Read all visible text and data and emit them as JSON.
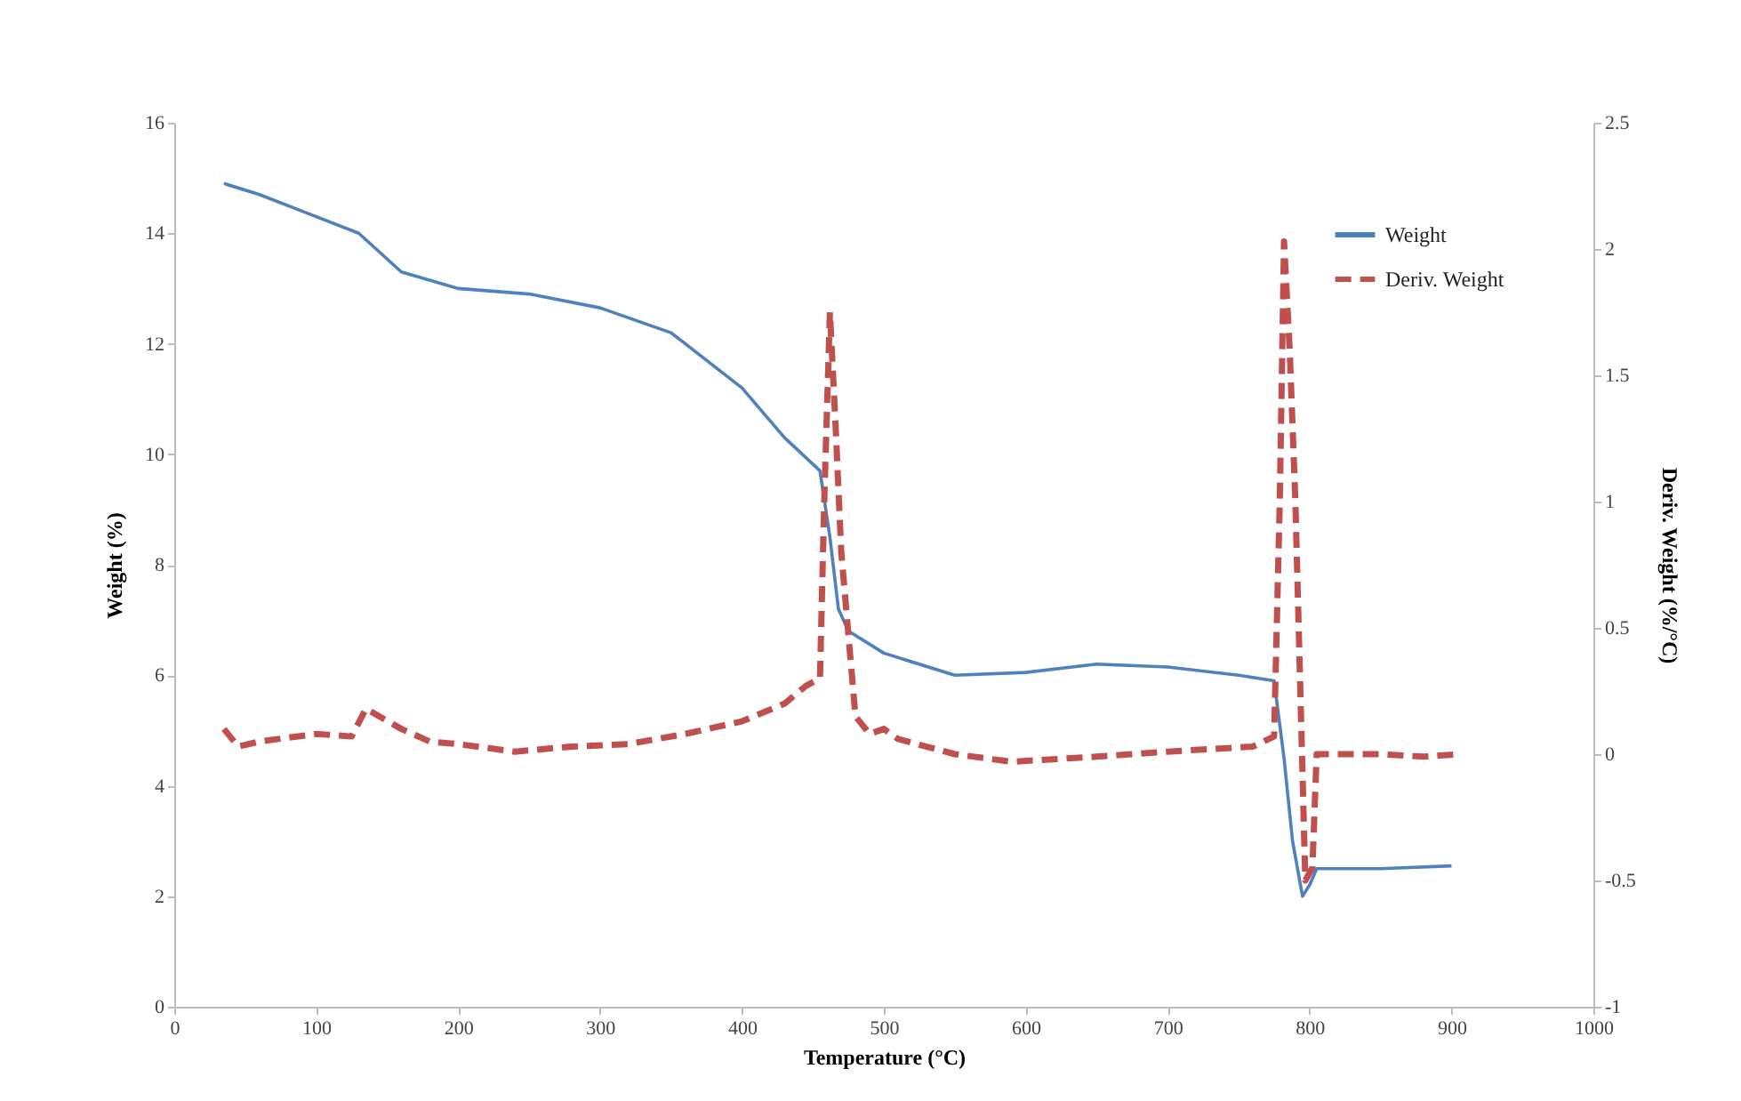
{
  "chart_data": {
    "type": "line",
    "xlabel": "Temperature (°C)",
    "ylabel": "Weight (%)",
    "y2label": "Deriv. Weight (%/°C)",
    "xlim": [
      0,
      1000
    ],
    "xticks": [
      0,
      100,
      200,
      300,
      400,
      500,
      600,
      700,
      800,
      900,
      1000
    ],
    "ylim": [
      0,
      16
    ],
    "yticks": [
      0,
      2,
      4,
      6,
      8,
      10,
      12,
      14,
      16
    ],
    "y2lim": [
      -1,
      2.5
    ],
    "y2ticks": [
      -1,
      -0.5,
      0,
      0.5,
      1,
      1.5,
      2,
      2.5
    ],
    "grid": false,
    "legend": "top right",
    "marker": "none",
    "series": [
      {
        "name": "Weight",
        "color": "#4f81bd",
        "line_style": "solid",
        "x": [
          35,
          60,
          90,
          130,
          160,
          200,
          250,
          300,
          350,
          400,
          430,
          455,
          462,
          468,
          475,
          500,
          550,
          600,
          650,
          700,
          750,
          775,
          782,
          788,
          795,
          800,
          805,
          850,
          900
        ],
        "values": [
          14.9,
          14.7,
          14.4,
          14.0,
          13.3,
          13.0,
          12.9,
          12.65,
          12.2,
          11.2,
          10.3,
          9.7,
          8.5,
          7.2,
          6.8,
          6.4,
          6.0,
          6.05,
          6.2,
          6.15,
          6.0,
          5.9,
          4.5,
          3.0,
          2.0,
          2.2,
          2.5,
          2.5,
          2.55
        ]
      },
      {
        "name": "Deriv. Weight",
        "color": "#c0504d",
        "line_style": "dashed",
        "axis": "y2",
        "x": [
          35,
          45,
          60,
          100,
          125,
          135,
          160,
          180,
          200,
          240,
          280,
          320,
          360,
          400,
          430,
          445,
          455,
          458,
          462,
          466,
          470,
          480,
          490,
          500,
          510,
          550,
          590,
          650,
          700,
          760,
          775,
          779,
          782,
          786,
          790,
          797,
          802,
          805,
          850,
          880,
          905
        ],
        "values": [
          0.1,
          0.03,
          0.05,
          0.08,
          0.07,
          0.18,
          0.1,
          0.05,
          0.04,
          0.01,
          0.03,
          0.04,
          0.08,
          0.13,
          0.2,
          0.27,
          0.3,
          1.0,
          1.75,
          1.3,
          0.8,
          0.15,
          0.08,
          0.1,
          0.06,
          0.0,
          -0.03,
          -0.01,
          0.01,
          0.03,
          0.07,
          1.0,
          2.03,
          1.6,
          1.0,
          -0.5,
          -0.45,
          0.0,
          0.0,
          -0.01,
          0.0
        ]
      }
    ]
  }
}
